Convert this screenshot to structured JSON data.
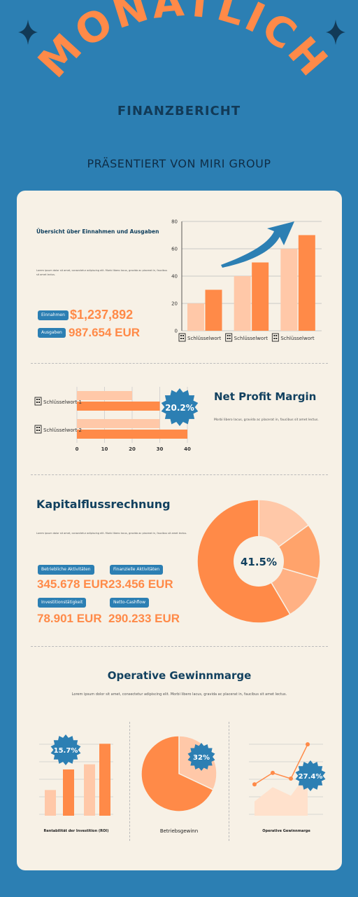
{
  "header": {
    "title": "MONATLICH",
    "subtitle": "FINANZBERICHT",
    "presenter": "PRÄSENTIERT VON MIRI GROUP"
  },
  "colors": {
    "background": "#2c7fb3",
    "card": "#f7f1e6",
    "orange": "#ff8a48",
    "light_orange": "#ffc8a8",
    "navy": "#12415f"
  },
  "overview": {
    "title": "Übersicht über Einnahmen und Ausgaben",
    "small_text": "Lorem ipsum dolor sit amet, consectetur adipiscing elit. Morbi libero lacus, gravida ac placerat in, faucibus sit amet lectus.",
    "income_label": "Einnahmen",
    "income_value": "$1,237,892",
    "expense_label": "Ausgaben",
    "expense_value": "987.654 EUR"
  },
  "chart_data": [
    {
      "type": "bar",
      "categories": [
        "Schlüsselwort",
        "Schlüsselwort",
        "Schlüsselwort"
      ],
      "series": [
        {
          "values": [
            20,
            40,
            60
          ]
        },
        {
          "values": [
            30,
            50,
            70
          ]
        }
      ],
      "ylim": [
        0,
        80
      ],
      "yticks": [
        0,
        20,
        40,
        60,
        80
      ],
      "grid": true
    },
    {
      "type": "bar",
      "orientation": "horizontal",
      "categories": [
        "Schlüsselwort 1",
        "Schlüsselwort 2"
      ],
      "series": [
        {
          "values": [
            20,
            30
          ]
        },
        {
          "values": [
            30,
            40
          ]
        }
      ],
      "xlim": [
        0,
        40
      ],
      "xticks": [
        0,
        10,
        20,
        30,
        40
      ],
      "grid": true
    },
    {
      "type": "pie",
      "values": [
        58.5,
        12,
        14.5,
        15
      ],
      "center_label": "41.5%"
    },
    {
      "type": "bar",
      "series": [
        {
          "values": [
            25,
            50
          ]
        },
        {
          "values": [
            45,
            70
          ]
        }
      ],
      "badge": "15.7%",
      "caption": "Rentabilität der Investition (ROI)"
    },
    {
      "type": "pie",
      "values": [
        68,
        32
      ],
      "badge": "32%",
      "caption": "Betriebsgewinn"
    },
    {
      "type": "line",
      "series": [
        {
          "values": [
            22,
            30,
            26,
            50
          ]
        },
        {
          "values": [
            10,
            20,
            14,
            30
          ]
        }
      ],
      "badge": "27.4%",
      "caption": "Operative Gewinnmarge"
    }
  ],
  "net_profit": {
    "title": "Net Profit Margin",
    "text": "Morbi libero lacus, gravida ac placerat in, faucibus sit amet lectus.",
    "badge": "20.2%"
  },
  "cashflow": {
    "title": "Kapitalflussrechnung",
    "small_text": "Lorem ipsum dolor sit amet, consectetur adipiscing elit. Morbi libero lacus, gravida ac placerat in, faucibus sit amet lectus.",
    "items": [
      {
        "label": "Betriebliche Aktivitäten",
        "value": "345.678 EUR"
      },
      {
        "label": "Finanzielle Aktivitäten",
        "value": "23.456 EUR"
      },
      {
        "label": "Investitionstätigkeit",
        "value": "78.901 EUR"
      },
      {
        "label": "Netto-Cashflow",
        "value": "290.233 EUR"
      }
    ]
  },
  "operating": {
    "title": "Operative Gewinnmarge",
    "text": "Lorem ipsum dolor sit amet, consectetur adipiscing elit. Morbi libero lacus, gravida ac placerat in, faucibus sit amet lectus."
  }
}
